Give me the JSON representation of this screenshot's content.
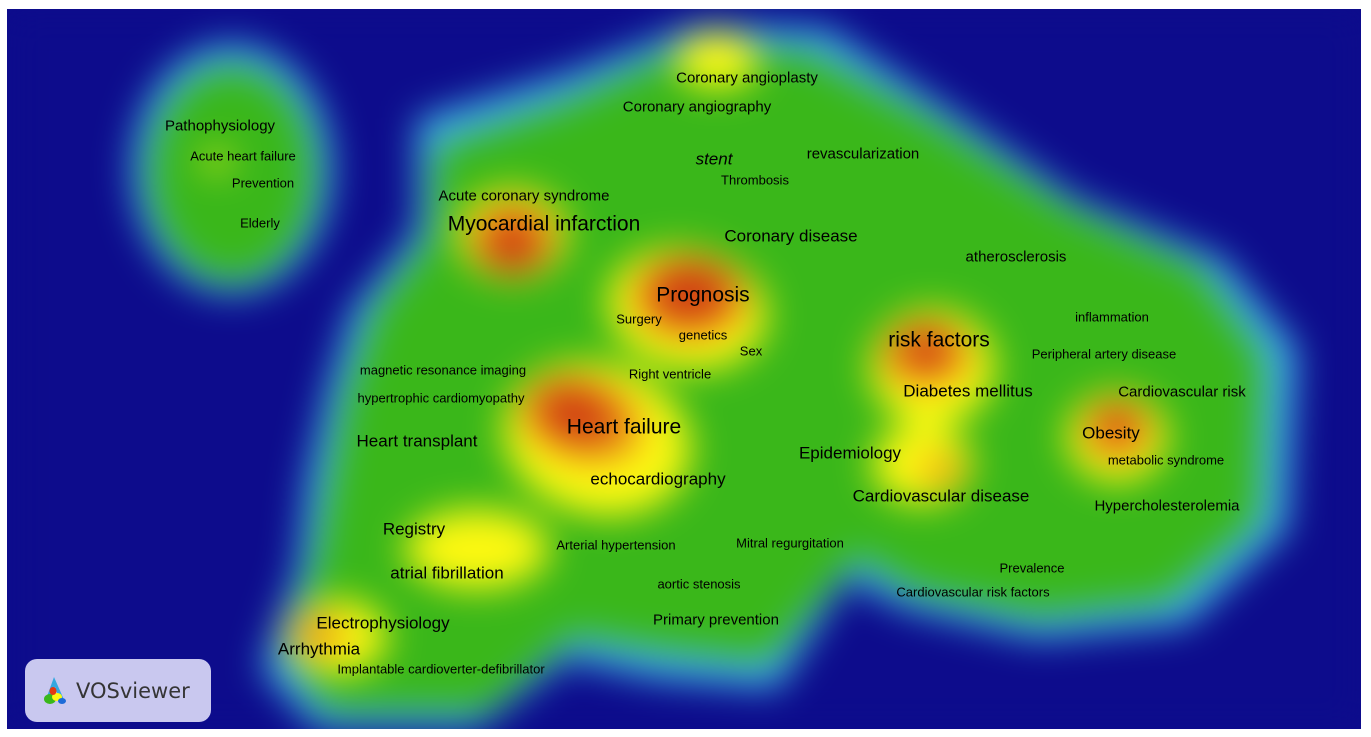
{
  "colors": {
    "background": "#0d0c8c",
    "cyan": "#3fb4e6",
    "green": "#3ab71a",
    "yellow": "#fcf811",
    "orange": "#e88a17",
    "red": "#cf3b12"
  },
  "logo": {
    "text": "VOSviewer",
    "icon": "vosviewer-logo-icon"
  },
  "terms": [
    {
      "id": "coronary-angioplasty",
      "label": "Coronary angioplasty"
    },
    {
      "id": "coronary-angiography",
      "label": "Coronary angiography"
    },
    {
      "id": "pathophysiology",
      "label": "Pathophysiology"
    },
    {
      "id": "acute-heart-failure",
      "label": "Acute heart failure"
    },
    {
      "id": "prevention",
      "label": "Prevention"
    },
    {
      "id": "elderly",
      "label": "Elderly"
    },
    {
      "id": "stent",
      "label": "stent"
    },
    {
      "id": "revascularization",
      "label": "revascularization"
    },
    {
      "id": "thrombosis",
      "label": "Thrombosis"
    },
    {
      "id": "acute-coronary-syndrome",
      "label": "Acute coronary syndrome"
    },
    {
      "id": "myocardial-infarction",
      "label": "Myocardial infarction"
    },
    {
      "id": "coronary-disease",
      "label": "Coronary disease"
    },
    {
      "id": "atherosclerosis",
      "label": "atherosclerosis"
    },
    {
      "id": "prognosis",
      "label": "Prognosis"
    },
    {
      "id": "surgery",
      "label": "Surgery"
    },
    {
      "id": "genetics",
      "label": "genetics"
    },
    {
      "id": "sex",
      "label": "Sex"
    },
    {
      "id": "inflammation",
      "label": "inflammation"
    },
    {
      "id": "risk-factors",
      "label": "risk factors"
    },
    {
      "id": "peripheral-artery-disease",
      "label": "Peripheral artery disease"
    },
    {
      "id": "magnetic-resonance-imaging",
      "label": "magnetic resonance imaging"
    },
    {
      "id": "right-ventricle",
      "label": "Right ventricle"
    },
    {
      "id": "hypertrophic-cardiomyopathy",
      "label": "hypertrophic cardiomyopathy"
    },
    {
      "id": "diabetes-mellitus",
      "label": "Diabetes mellitus"
    },
    {
      "id": "cardiovascular-risk",
      "label": "Cardiovascular risk"
    },
    {
      "id": "heart-failure",
      "label": "Heart failure"
    },
    {
      "id": "obesity",
      "label": "Obesity"
    },
    {
      "id": "heart-transplant",
      "label": "Heart transplant"
    },
    {
      "id": "epidemiology",
      "label": "Epidemiology"
    },
    {
      "id": "metabolic-syndrome",
      "label": "metabolic syndrome"
    },
    {
      "id": "echocardiography",
      "label": "echocardiography"
    },
    {
      "id": "cardiovascular-disease",
      "label": "Cardiovascular disease"
    },
    {
      "id": "hypercholesterolemia",
      "label": "Hypercholesterolemia"
    },
    {
      "id": "registry",
      "label": "Registry"
    },
    {
      "id": "arterial-hypertension",
      "label": "Arterial hypertension"
    },
    {
      "id": "mitral-regurgitation",
      "label": "Mitral regurgitation"
    },
    {
      "id": "prevalence",
      "label": "Prevalence"
    },
    {
      "id": "atrial-fibrillation",
      "label": "atrial fibrillation"
    },
    {
      "id": "aortic-stenosis",
      "label": "aortic stenosis"
    },
    {
      "id": "cardiovascular-risk-factors",
      "label": "Cardiovascular risk factors"
    },
    {
      "id": "primary-prevention",
      "label": "Primary prevention"
    },
    {
      "id": "electrophysiology",
      "label": "Electrophysiology"
    },
    {
      "id": "arrhythmia",
      "label": "Arrhythmia"
    },
    {
      "id": "implantable-cardioverter-defibrillator",
      "label": "Implantable cardioverter-defibrillator"
    }
  ]
}
